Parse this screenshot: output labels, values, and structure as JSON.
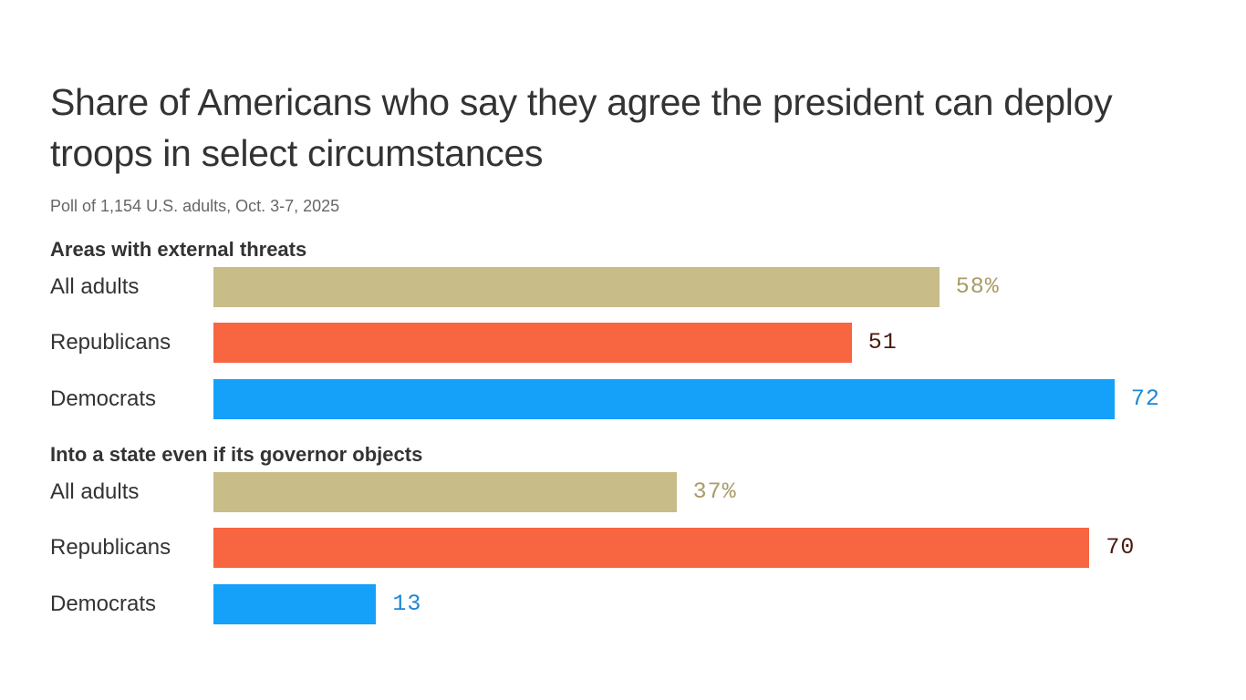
{
  "chart_data": {
    "type": "bar",
    "orientation": "horizontal",
    "title": "Share of Americans who say they agree the president can deploy troops in select circumstances",
    "subtitle": "Poll of 1,154 U.S. adults, Oct. 3-7, 2025",
    "xlim": [
      0,
      100
    ],
    "grid": false,
    "unit": "%",
    "colors": {
      "All adults": "#c8bc88",
      "Republicans": "#f76541",
      "Democrats": "#15a0fa"
    },
    "label_colors": {
      "All adults": "#a89c68",
      "Republicans": "#4a1a0e",
      "Democrats": "#1a88d6"
    },
    "groups": [
      {
        "heading": "Areas with external threats",
        "categories": [
          "All adults",
          "Republicans",
          "Democrats"
        ],
        "values": [
          58,
          51,
          72
        ],
        "value_labels": [
          "58%",
          "51",
          "72"
        ]
      },
      {
        "heading": "Into a state even if its governor objects",
        "categories": [
          "All adults",
          "Republicans",
          "Democrats"
        ],
        "values": [
          37,
          70,
          13
        ],
        "value_labels": [
          "37%",
          "70",
          "13"
        ]
      }
    ]
  }
}
